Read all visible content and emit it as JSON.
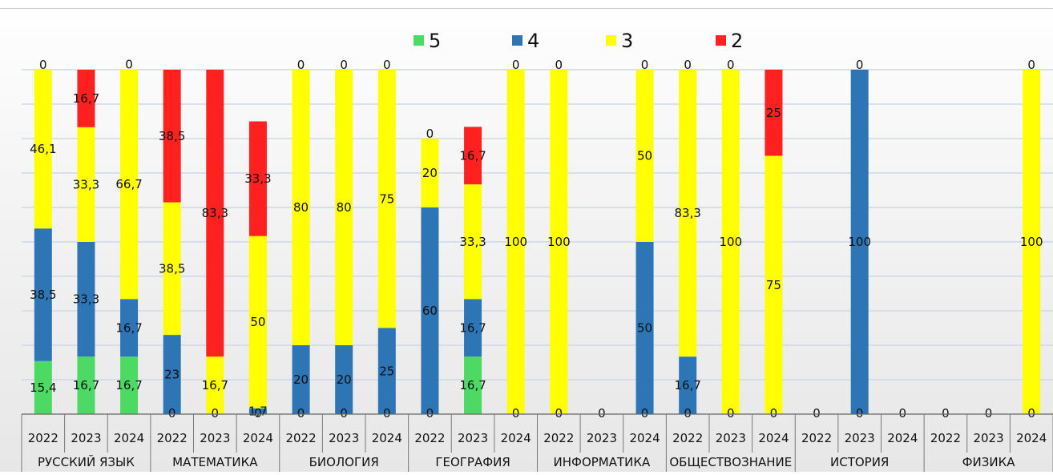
{
  "chart_data": {
    "type": "bar",
    "stacked": true,
    "ylim": [
      0,
      100
    ],
    "grid": true,
    "legend_position": "top",
    "series": [
      {
        "name": "5",
        "color": "#4cd964"
      },
      {
        "name": "4",
        "color": "#2e75b6"
      },
      {
        "name": "3",
        "color": "#ffff00"
      },
      {
        "name": "2",
        "color": "#ff2020"
      }
    ],
    "groups": [
      {
        "name": "РУССКИЙ ЯЗЫК",
        "bars": [
          {
            "year": "2022",
            "values": [
              15.4,
              38.5,
              46.1,
              0
            ],
            "labels": [
              "15,4",
              "38,5",
              "46,1",
              "0"
            ]
          },
          {
            "year": "2023",
            "values": [
              16.7,
              33.3,
              33.3,
              16.7
            ],
            "labels": [
              "16,7",
              "33,3",
              "33,3",
              "16,7"
            ]
          },
          {
            "year": "2024",
            "values": [
              16.7,
              16.7,
              66.7,
              0
            ],
            "labels": [
              "16,7",
              "16,7",
              "66,7",
              "0"
            ]
          }
        ]
      },
      {
        "name": "МАТЕМАТИКА",
        "bars": [
          {
            "year": "2022",
            "values": [
              0,
              23,
              38.5,
              38.5
            ],
            "labels": [
              "0",
              "23",
              "38,5",
              "38,5"
            ]
          },
          {
            "year": "2023",
            "values": [
              0,
              0,
              16.7,
              83.3
            ],
            "labels": [
              "0",
              "",
              "16,7",
              "83,3"
            ]
          },
          {
            "year": "2024",
            "values": [
              0,
              1.7,
              50,
              33.3
            ],
            "labels": [
              "0",
              "1,7",
              "50",
              "33,3"
            ]
          }
        ]
      },
      {
        "name": "БИОЛОГИЯ",
        "bars": [
          {
            "year": "2022",
            "values": [
              0,
              20,
              80,
              0
            ],
            "labels": [
              "0",
              "20",
              "80",
              "0"
            ]
          },
          {
            "year": "2023",
            "values": [
              0,
              20,
              80,
              0
            ],
            "labels": [
              "0",
              "20",
              "80",
              "0"
            ]
          },
          {
            "year": "2024",
            "values": [
              0,
              25,
              75,
              0
            ],
            "labels": [
              "0",
              "25",
              "75",
              "0"
            ]
          }
        ]
      },
      {
        "name": "ГЕОГРАФИЯ",
        "bars": [
          {
            "year": "2022",
            "values": [
              0,
              60,
              20,
              0
            ],
            "labels": [
              "0",
              "60",
              "20",
              "0"
            ]
          },
          {
            "year": "2023",
            "values": [
              16.7,
              16.7,
              33.3,
              16.7
            ],
            "labels": [
              "16,7",
              "16,7",
              "33,3",
              "16,7"
            ]
          },
          {
            "year": "2024",
            "values": [
              0,
              0,
              100,
              0
            ],
            "labels": [
              "0",
              "",
              "100",
              "0"
            ]
          }
        ]
      },
      {
        "name": "ИНФОРМАТИКА",
        "bars": [
          {
            "year": "2022",
            "values": [
              0,
              0,
              100,
              0
            ],
            "labels": [
              "0",
              "",
              "100",
              "0"
            ]
          },
          {
            "year": "2023",
            "values": [
              0,
              0,
              0,
              0
            ],
            "labels": [
              "0",
              "",
              "",
              ""
            ]
          },
          {
            "year": "2024",
            "values": [
              0,
              50,
              50,
              0
            ],
            "labels": [
              "0",
              "50",
              "50",
              "0"
            ]
          }
        ]
      },
      {
        "name": "ОБЩЕСТВОЗНАНИЕ",
        "bars": [
          {
            "year": "2022",
            "values": [
              0,
              16.7,
              83.3,
              0
            ],
            "labels": [
              "0",
              "16,7",
              "83,3",
              "0"
            ]
          },
          {
            "year": "2023",
            "values": [
              0,
              0,
              100,
              0
            ],
            "labels": [
              "0",
              "",
              "100",
              "0"
            ]
          },
          {
            "year": "2024",
            "values": [
              0,
              0,
              75,
              25
            ],
            "labels": [
              "0",
              "",
              "75",
              "25"
            ]
          }
        ]
      },
      {
        "name": "ИСТОРИЯ",
        "bars": [
          {
            "year": "2022",
            "values": [
              0,
              0,
              0,
              0
            ],
            "labels": [
              "0",
              "",
              "",
              ""
            ]
          },
          {
            "year": "2023",
            "values": [
              0,
              100,
              0,
              0
            ],
            "labels": [
              "0",
              "100",
              "0",
              ""
            ]
          },
          {
            "year": "2024",
            "values": [
              0,
              0,
              0,
              0
            ],
            "labels": [
              "0",
              "",
              "",
              ""
            ]
          }
        ]
      },
      {
        "name": "ФИЗИКА",
        "bars": [
          {
            "year": "2022",
            "values": [
              0,
              0,
              0,
              0
            ],
            "labels": [
              "0",
              "",
              "",
              ""
            ]
          },
          {
            "year": "2023",
            "values": [
              0,
              0,
              0,
              0
            ],
            "labels": [
              "0",
              "",
              "",
              ""
            ]
          },
          {
            "year": "2024",
            "values": [
              0,
              0,
              100,
              0
            ],
            "labels": [
              "0",
              "",
              "100",
              "0"
            ]
          }
        ]
      }
    ]
  }
}
